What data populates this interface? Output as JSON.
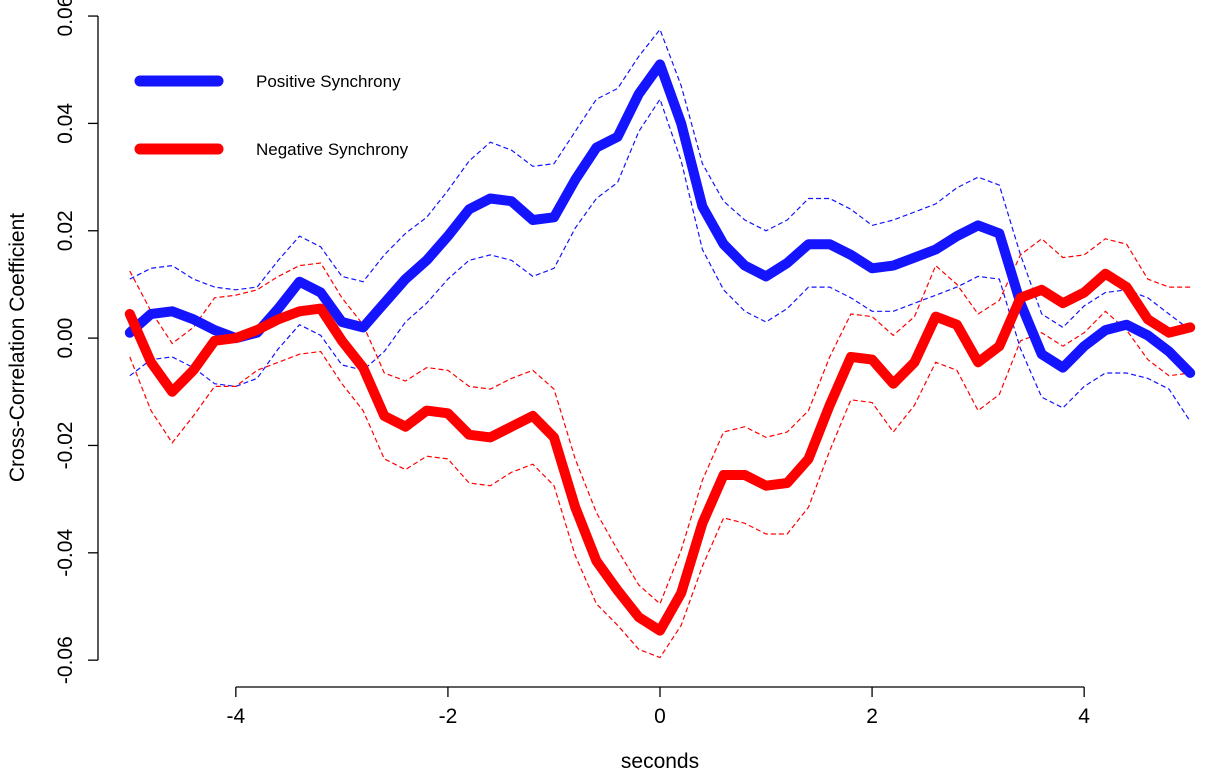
{
  "chart_data": {
    "type": "line",
    "xlabel": "seconds",
    "ylabel": "Cross-Correlation Coefficient",
    "xlim": [
      -5.3,
      5.3
    ],
    "ylim": [
      -0.065,
      0.0615
    ],
    "x_ticks": [
      -4,
      -2,
      0,
      2,
      4
    ],
    "x_tick_labels": [
      "-4",
      "-2",
      "0",
      "2",
      "4"
    ],
    "y_ticks": [
      -0.06,
      -0.04,
      -0.02,
      0.0,
      0.02,
      0.04,
      0.06
    ],
    "y_tick_labels": [
      "-0.06",
      "-0.04",
      "-0.02",
      "0.00",
      "0.02",
      "0.04",
      "0.06"
    ],
    "grid": false,
    "legend_position": "top-left",
    "x": [
      -5.0,
      -4.8,
      -4.6,
      -4.4,
      -4.2,
      -4.0,
      -3.8,
      -3.6,
      -3.4,
      -3.2,
      -3.0,
      -2.8,
      -2.6,
      -2.4,
      -2.2,
      -2.0,
      -1.8,
      -1.6,
      -1.4,
      -1.2,
      -1.0,
      -0.8,
      -0.6,
      -0.4,
      -0.2,
      0.0,
      0.2,
      0.4,
      0.6,
      0.8,
      1.0,
      1.2,
      1.4,
      1.6,
      1.8,
      2.0,
      2.2,
      2.4,
      2.6,
      2.8,
      3.0,
      3.2,
      3.4,
      3.6,
      3.8,
      4.0,
      4.2,
      4.4,
      4.6,
      4.8,
      5.0
    ],
    "series": [
      {
        "name": "Positive Synchrony",
        "color": "#1414ff",
        "values": [
          0.001,
          0.0045,
          0.005,
          0.0035,
          0.0015,
          0.0,
          0.001,
          0.0055,
          0.0105,
          0.0085,
          0.003,
          0.002,
          0.0065,
          0.011,
          0.0145,
          0.019,
          0.024,
          0.026,
          0.0255,
          0.022,
          0.0225,
          0.0295,
          0.0355,
          0.0375,
          0.0455,
          0.051,
          0.04,
          0.0245,
          0.0175,
          0.0135,
          0.0115,
          0.014,
          0.0175,
          0.0175,
          0.0155,
          0.013,
          0.0135,
          0.015,
          0.0165,
          0.019,
          0.021,
          0.0195,
          0.0065,
          -0.003,
          -0.0055,
          -0.0015,
          0.0015,
          0.0025,
          0.0005,
          -0.0025,
          -0.0065
        ],
        "upper": [
          0.011,
          0.013,
          0.0135,
          0.011,
          0.0095,
          0.009,
          0.0095,
          0.0145,
          0.019,
          0.017,
          0.0115,
          0.0105,
          0.0155,
          0.0195,
          0.0225,
          0.0275,
          0.033,
          0.0365,
          0.035,
          0.032,
          0.0325,
          0.0385,
          0.0445,
          0.0465,
          0.0525,
          0.0575,
          0.047,
          0.0325,
          0.0255,
          0.022,
          0.02,
          0.022,
          0.026,
          0.026,
          0.024,
          0.021,
          0.022,
          0.0235,
          0.025,
          0.028,
          0.03,
          0.0285,
          0.0155,
          0.0045,
          0.002,
          0.006,
          0.0085,
          0.009,
          0.0075,
          0.0045,
          0.0015
        ],
        "lower": [
          -0.007,
          -0.004,
          -0.0035,
          -0.0055,
          -0.0085,
          -0.009,
          -0.0075,
          -0.002,
          0.0025,
          0.0005,
          -0.005,
          -0.006,
          -0.0025,
          0.003,
          0.0065,
          0.011,
          0.0145,
          0.0155,
          0.0145,
          0.0115,
          0.013,
          0.0205,
          0.026,
          0.029,
          0.0385,
          0.0445,
          0.033,
          0.0165,
          0.009,
          0.005,
          0.003,
          0.0055,
          0.0095,
          0.0095,
          0.0075,
          0.005,
          0.005,
          0.0065,
          0.008,
          0.0095,
          0.0115,
          0.011,
          -0.002,
          -0.011,
          -0.013,
          -0.009,
          -0.0065,
          -0.0065,
          -0.0075,
          -0.0095,
          -0.0155
        ]
      },
      {
        "name": "Negative Synchrony",
        "color": "#ff0000",
        "values": [
          0.0045,
          -0.0045,
          -0.01,
          -0.006,
          -0.0005,
          0.0,
          0.0015,
          0.0035,
          0.005,
          0.0055,
          -0.0005,
          -0.0055,
          -0.0145,
          -0.0165,
          -0.0135,
          -0.014,
          -0.018,
          -0.0185,
          -0.0165,
          -0.0145,
          -0.0185,
          -0.0315,
          -0.0415,
          -0.047,
          -0.052,
          -0.0545,
          -0.0475,
          -0.0345,
          -0.0255,
          -0.0255,
          -0.0275,
          -0.027,
          -0.0225,
          -0.0125,
          -0.0035,
          -0.004,
          -0.0085,
          -0.0045,
          0.004,
          0.0025,
          -0.0045,
          -0.0015,
          0.0075,
          0.009,
          0.0065,
          0.0085,
          0.012,
          0.0095,
          0.0035,
          0.001,
          0.002
        ],
        "upper": [
          0.0125,
          0.005,
          -0.001,
          0.002,
          0.0075,
          0.008,
          0.009,
          0.0115,
          0.0135,
          0.014,
          0.0075,
          0.0025,
          -0.0065,
          -0.008,
          -0.0055,
          -0.006,
          -0.009,
          -0.0095,
          -0.0075,
          -0.006,
          -0.0095,
          -0.0225,
          -0.0325,
          -0.0395,
          -0.046,
          -0.0495,
          -0.0395,
          -0.0265,
          -0.0175,
          -0.0165,
          -0.0185,
          -0.0175,
          -0.0135,
          -0.0035,
          0.0045,
          0.004,
          0.0005,
          0.004,
          0.0135,
          0.01,
          0.0045,
          0.007,
          0.0155,
          0.0185,
          0.015,
          0.0155,
          0.0185,
          0.0175,
          0.011,
          0.0095,
          0.0095
        ],
        "lower": [
          -0.0035,
          -0.0135,
          -0.0195,
          -0.0145,
          -0.009,
          -0.009,
          -0.006,
          -0.0045,
          -0.003,
          -0.0025,
          -0.0085,
          -0.0135,
          -0.0225,
          -0.0245,
          -0.022,
          -0.0225,
          -0.027,
          -0.0275,
          -0.025,
          -0.0235,
          -0.0275,
          -0.0405,
          -0.0495,
          -0.0535,
          -0.058,
          -0.0595,
          -0.0535,
          -0.0425,
          -0.0335,
          -0.0345,
          -0.0365,
          -0.0365,
          -0.0315,
          -0.021,
          -0.0115,
          -0.012,
          -0.0175,
          -0.0125,
          -0.0045,
          -0.006,
          -0.0135,
          -0.0105,
          -0.0005,
          0.001,
          -0.0015,
          0.001,
          0.005,
          0.0015,
          -0.004,
          -0.007,
          -0.0065
        ]
      }
    ]
  }
}
